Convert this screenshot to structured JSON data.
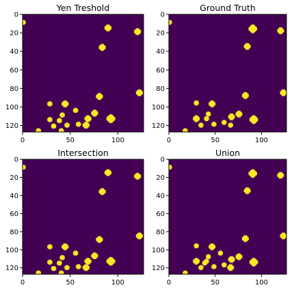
{
  "colors": {
    "background": "#440154",
    "foreground": "#fde725",
    "axes_frame": "#000000"
  },
  "chart_data": [
    {
      "type": "heatmap",
      "title": "Yen Treshold",
      "xlim": [
        0,
        127
      ],
      "ylim": [
        127,
        0
      ],
      "xticks": [
        0,
        50,
        100
      ],
      "yticks": [
        0,
        20,
        40,
        60,
        80,
        100,
        120
      ],
      "values_note": "binary mask: 0 = background, 1 = detected",
      "blobs": [
        [
          0,
          8,
          2
        ],
        [
          89,
          14,
          3
        ],
        [
          120,
          18,
          3
        ],
        [
          83,
          35,
          3
        ],
        [
          122,
          84,
          3
        ],
        [
          80,
          88,
          3
        ],
        [
          44,
          96,
          3
        ],
        [
          28,
          96,
          2
        ],
        [
          55,
          103,
          2
        ],
        [
          75,
          106,
          3
        ],
        [
          41,
          108,
          2
        ],
        [
          92,
          112,
          4
        ],
        [
          68,
          112,
          3
        ],
        [
          28,
          113,
          2
        ],
        [
          38,
          114,
          2
        ],
        [
          66,
          119,
          3
        ],
        [
          46,
          119,
          2
        ],
        [
          58,
          118,
          2
        ],
        [
          32,
          120,
          2
        ],
        [
          40,
          125,
          2
        ],
        [
          16,
          125,
          2
        ]
      ]
    },
    {
      "type": "heatmap",
      "title": "Ground Truth",
      "xlim": [
        0,
        127
      ],
      "ylim": [
        127,
        0
      ],
      "xticks": [
        0,
        50,
        100
      ],
      "yticks": [
        0,
        20,
        40,
        60,
        80,
        100,
        120
      ],
      "values_note": "binary mask: 0 = background, 1 = object",
      "blobs": [
        [
          0,
          8,
          2
        ],
        [
          90,
          15,
          4
        ],
        [
          120,
          17,
          3
        ],
        [
          84,
          34,
          3
        ],
        [
          123,
          84,
          3
        ],
        [
          82,
          87,
          3
        ],
        [
          46,
          96,
          3
        ],
        [
          29,
          95,
          2
        ],
        [
          42,
          107,
          2
        ],
        [
          75,
          107,
          3
        ],
        [
          91,
          113,
          4
        ],
        [
          29,
          112,
          3
        ],
        [
          40,
          112,
          2
        ],
        [
          67,
          110,
          3
        ],
        [
          48,
          118,
          2
        ],
        [
          59,
          116,
          2
        ],
        [
          66,
          119,
          2
        ],
        [
          34,
          119,
          2
        ],
        [
          17,
          125,
          2
        ]
      ]
    },
    {
      "type": "heatmap",
      "title": "Intersection",
      "xlim": [
        0,
        127
      ],
      "ylim": [
        127,
        0
      ],
      "xticks": [
        0,
        50,
        100
      ],
      "yticks": [
        0,
        20,
        40,
        60,
        80,
        100,
        120
      ],
      "values_note": "binary mask: 0 = background, 1 = overlap",
      "blobs": [
        [
          0,
          8,
          2
        ],
        [
          89,
          14,
          3
        ],
        [
          120,
          18,
          3
        ],
        [
          83,
          35,
          3
        ],
        [
          122,
          84,
          3
        ],
        [
          80,
          88,
          3
        ],
        [
          44,
          96,
          3
        ],
        [
          28,
          96,
          2
        ],
        [
          55,
          103,
          2
        ],
        [
          75,
          106,
          3
        ],
        [
          41,
          108,
          2
        ],
        [
          92,
          112,
          4
        ],
        [
          68,
          112,
          3
        ],
        [
          28,
          113,
          2
        ],
        [
          38,
          114,
          2
        ],
        [
          66,
          119,
          3
        ],
        [
          46,
          119,
          2
        ],
        [
          58,
          118,
          2
        ],
        [
          32,
          120,
          2
        ],
        [
          40,
          125,
          2
        ],
        [
          16,
          125,
          2
        ]
      ]
    },
    {
      "type": "heatmap",
      "title": "Union",
      "xlim": [
        0,
        127
      ],
      "ylim": [
        127,
        0
      ],
      "xticks": [
        0,
        50,
        100
      ],
      "yticks": [
        0,
        20,
        40,
        60,
        80,
        100,
        120
      ],
      "values_note": "binary mask: 0 = background, 1 = union",
      "blobs": [
        [
          0,
          8,
          2
        ],
        [
          90,
          15,
          4
        ],
        [
          120,
          17,
          3
        ],
        [
          84,
          34,
          3
        ],
        [
          123,
          84,
          3
        ],
        [
          82,
          87,
          3
        ],
        [
          46,
          96,
          3
        ],
        [
          29,
          95,
          2
        ],
        [
          42,
          107,
          2
        ],
        [
          75,
          107,
          3
        ],
        [
          91,
          113,
          4
        ],
        [
          29,
          112,
          3
        ],
        [
          40,
          112,
          2
        ],
        [
          67,
          110,
          3
        ],
        [
          48,
          118,
          2
        ],
        [
          59,
          116,
          2
        ],
        [
          66,
          119,
          3
        ],
        [
          34,
          119,
          2
        ],
        [
          17,
          125,
          2
        ],
        [
          55,
          103,
          2
        ],
        [
          38,
          114,
          2
        ]
      ]
    }
  ]
}
